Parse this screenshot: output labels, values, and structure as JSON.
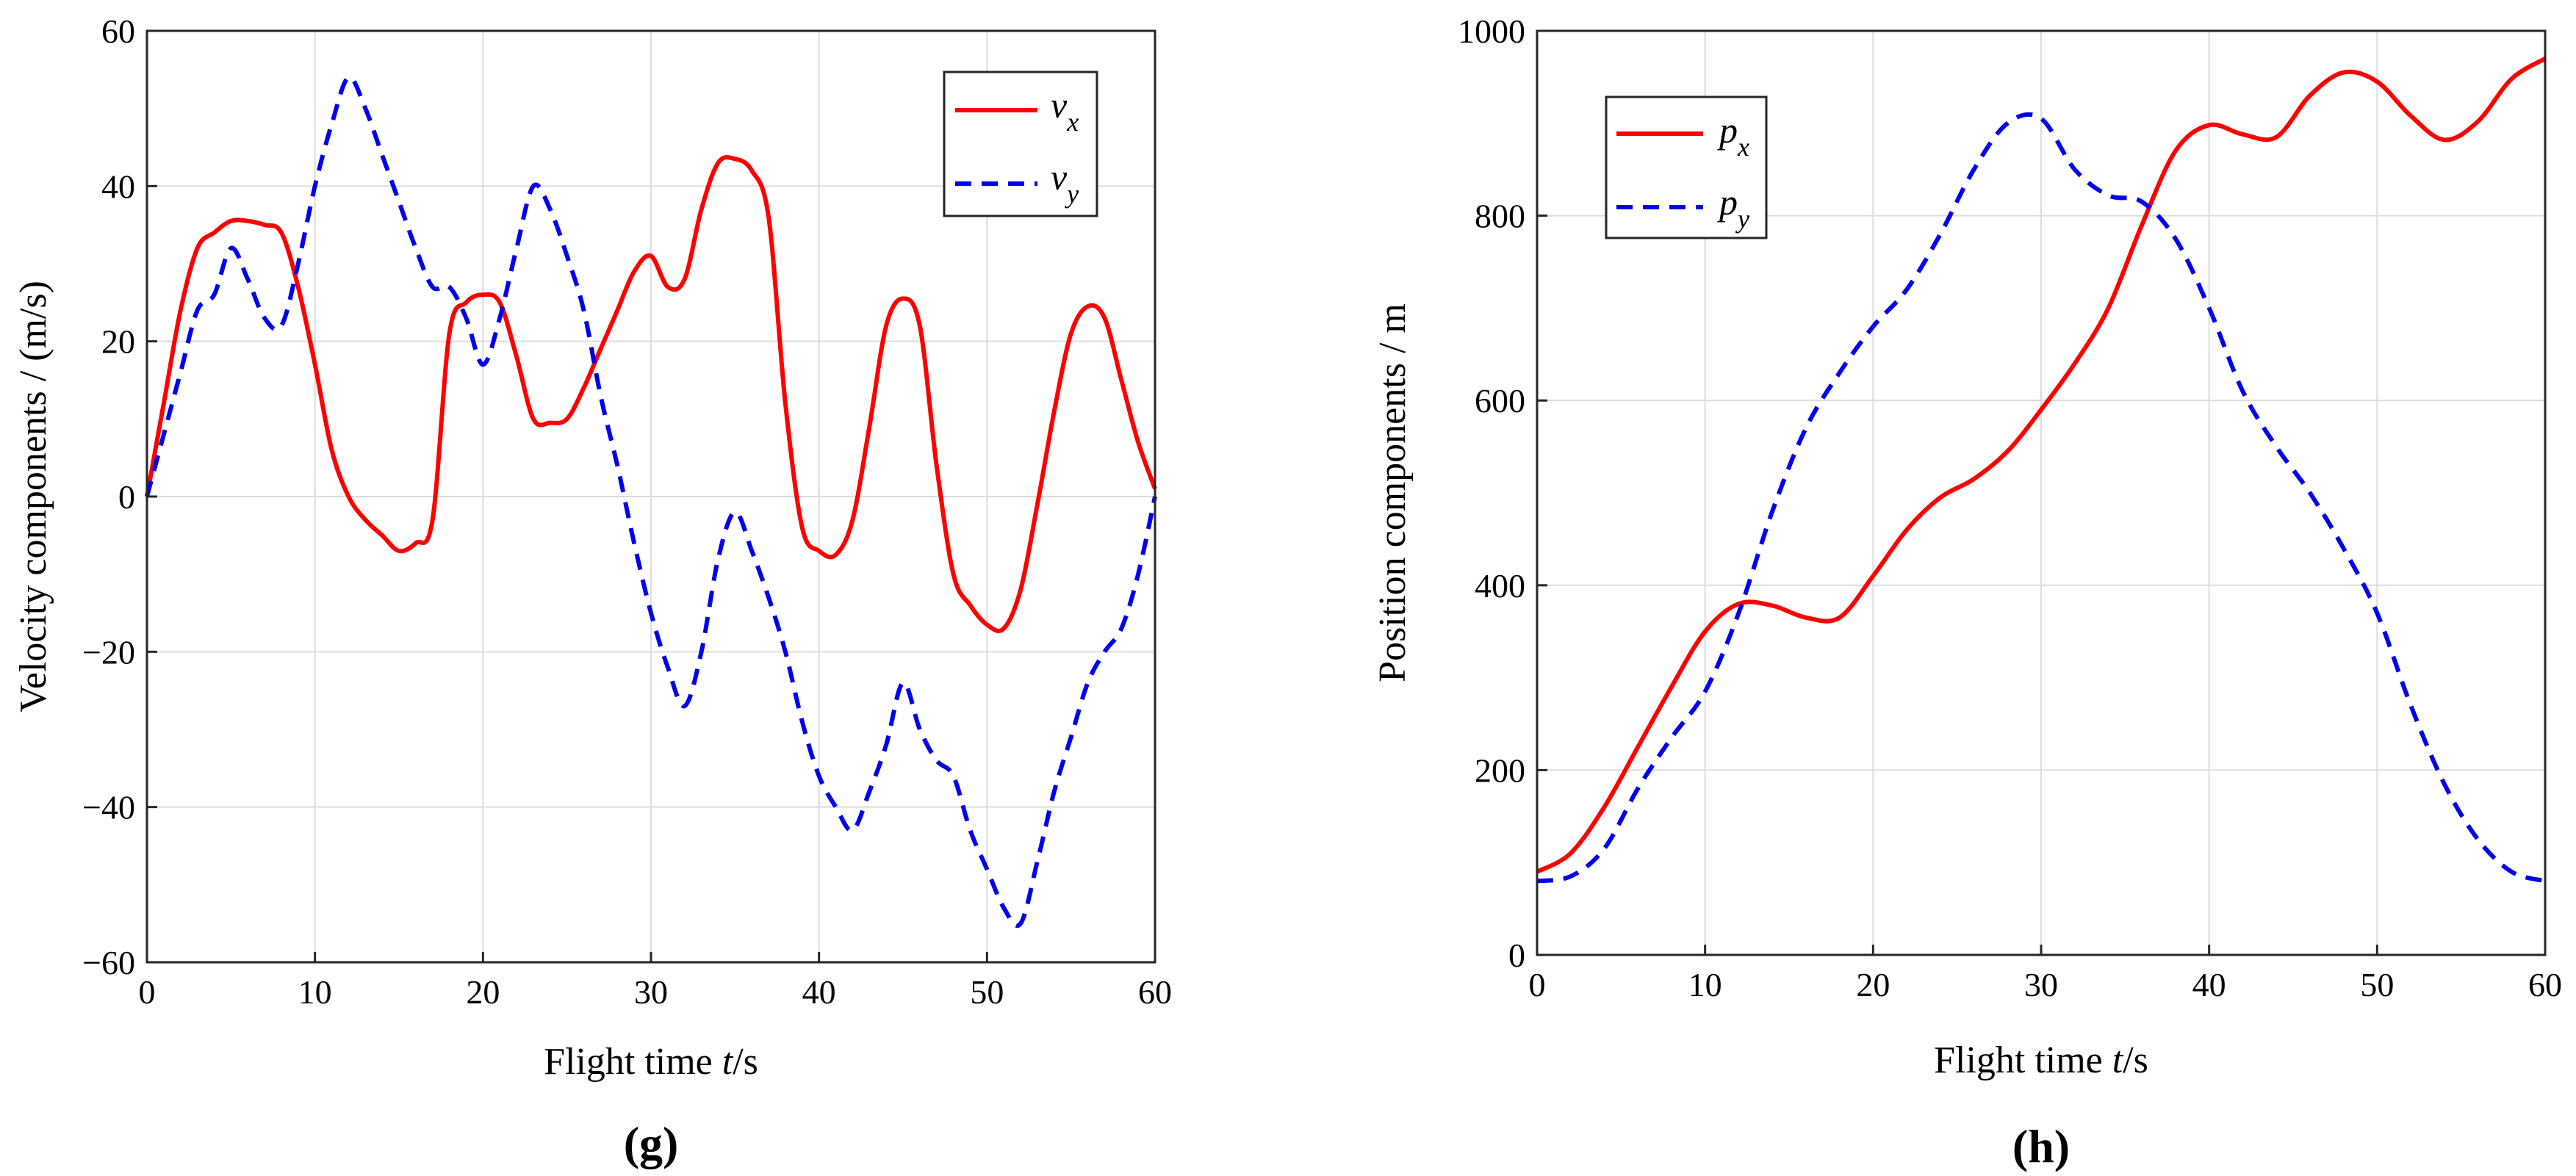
{
  "chart_data": [
    {
      "type": "line",
      "panel_label": "(g)",
      "xlabel": "Flight time t/s",
      "ylabel": "Velocity components / (m/s)",
      "xlim": [
        0,
        60
      ],
      "ylim": [
        -60,
        60
      ],
      "xticks": [
        0,
        10,
        20,
        30,
        40,
        50,
        60
      ],
      "yticks": [
        -60,
        -40,
        -20,
        0,
        20,
        40,
        60
      ],
      "ytick_labels": [
        "−60",
        "−40",
        "−20",
        "0",
        "20",
        "40",
        "60"
      ],
      "grid": true,
      "legend_position": "top-right",
      "series": [
        {
          "name": "v",
          "subscript": "x",
          "color": "#ff0000",
          "style": "solid",
          "x": [
            0,
            1,
            2,
            3,
            4,
            5,
            6,
            7,
            8,
            9,
            10,
            11,
            12,
            13,
            14,
            15,
            16,
            17,
            18,
            19,
            20,
            21,
            22,
            23,
            24,
            25,
            26,
            27,
            28,
            29,
            30,
            31,
            32,
            33,
            34,
            35,
            36,
            37,
            38,
            39,
            40,
            41,
            42,
            43,
            44,
            45,
            46,
            47,
            48,
            49,
            50,
            51,
            52,
            53,
            54,
            55,
            56,
            57,
            58,
            59,
            60
          ],
          "values": [
            0,
            12,
            24,
            32,
            34,
            35.5,
            35.5,
            35,
            34,
            27,
            17,
            6,
            0,
            -3,
            -5,
            -7,
            -6,
            -3,
            21,
            25,
            26,
            25,
            18,
            10,
            9.5,
            10,
            14,
            19,
            24,
            29,
            31,
            27,
            28,
            37,
            43,
            43.5,
            42,
            36,
            12,
            -4,
            -7,
            -7.5,
            -3,
            9,
            22,
            25.5,
            22,
            4,
            -10,
            -14,
            -16.5,
            -17,
            -12,
            -1,
            11,
            21,
            24.5,
            23,
            15,
            7,
            1
          ]
        },
        {
          "name": "v",
          "subscript": "y",
          "color": "#0000ee",
          "style": "dashed",
          "x": [
            0,
            1,
            2,
            3,
            4,
            5,
            6,
            7,
            8,
            9,
            10,
            11,
            12,
            13,
            14,
            15,
            16,
            17,
            18,
            19,
            20,
            21,
            22,
            23,
            24,
            25,
            26,
            27,
            28,
            29,
            30,
            31,
            32,
            33,
            34,
            35,
            36,
            37,
            38,
            39,
            40,
            41,
            42,
            43,
            44,
            45,
            46,
            47,
            48,
            49,
            50,
            51,
            52,
            53,
            54,
            55,
            56,
            57,
            58,
            59,
            60
          ],
          "values": [
            0,
            8,
            16,
            24,
            26,
            32,
            28,
            23,
            22,
            30,
            40,
            48,
            54,
            50,
            44,
            38,
            32,
            27,
            27,
            23,
            17,
            23,
            32,
            40,
            37,
            31,
            24,
            13,
            4,
            -6,
            -15,
            -22,
            -27,
            -20,
            -8,
            -2,
            -7,
            -13,
            -20,
            -29,
            -36,
            -40,
            -43,
            -38,
            -32,
            -24,
            -30,
            -34,
            -36,
            -43,
            -48,
            -53,
            -55,
            -47,
            -38,
            -31,
            -24,
            -20,
            -17,
            -10,
            0
          ]
        }
      ]
    },
    {
      "type": "line",
      "panel_label": "(h)",
      "xlabel": "Flight time t/s",
      "ylabel": "Position components / m",
      "xlim": [
        0,
        60
      ],
      "ylim": [
        0,
        1000
      ],
      "xticks": [
        0,
        10,
        20,
        30,
        40,
        50,
        60
      ],
      "yticks": [
        0,
        200,
        400,
        600,
        800,
        1000
      ],
      "ytick_labels": [
        "0",
        "200",
        "400",
        "600",
        "800",
        "1000"
      ],
      "grid": true,
      "legend_position": "top-left",
      "series": [
        {
          "name": "p",
          "subscript": "x",
          "color": "#ff0000",
          "style": "solid",
          "x": [
            0,
            2,
            4,
            6,
            8,
            10,
            12,
            14,
            16,
            18,
            20,
            22,
            24,
            26,
            28,
            30,
            32,
            34,
            36,
            38,
            40,
            42,
            44,
            46,
            48,
            50,
            52,
            54,
            56,
            58,
            60
          ],
          "values": [
            90,
            110,
            160,
            225,
            290,
            350,
            380,
            378,
            365,
            365,
            410,
            460,
            495,
            515,
            545,
            590,
            640,
            700,
            790,
            870,
            898,
            888,
            885,
            930,
            955,
            945,
            908,
            882,
            902,
            948,
            970
          ]
        },
        {
          "name": "p",
          "subscript": "y",
          "color": "#0000ee",
          "style": "dashed",
          "x": [
            0,
            2,
            4,
            6,
            8,
            10,
            12,
            14,
            16,
            18,
            20,
            22,
            24,
            26,
            28,
            30,
            32,
            34,
            36,
            38,
            40,
            42,
            44,
            46,
            48,
            50,
            52,
            54,
            56,
            58,
            60
          ],
          "values": [
            80,
            85,
            115,
            180,
            235,
            285,
            370,
            480,
            570,
            630,
            680,
            720,
            780,
            850,
            900,
            905,
            850,
            822,
            815,
            775,
            700,
            610,
            550,
            500,
            440,
            370,
            270,
            185,
            125,
            90,
            80
          ]
        }
      ]
    }
  ]
}
